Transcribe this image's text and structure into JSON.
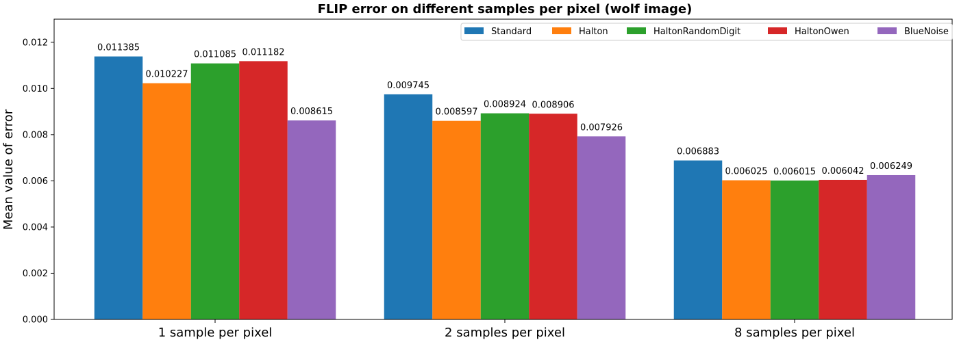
{
  "chart_data": {
    "type": "bar",
    "title": "FLIP error on different samples per pixel (wolf image)",
    "xlabel": "",
    "ylabel": "Mean value of error",
    "categories": [
      "1 sample per pixel",
      "2 samples per pixel",
      "8 samples per pixel"
    ],
    "ylim": [
      0,
      0.013
    ],
    "yticks": [
      "0.000",
      "0.002",
      "0.004",
      "0.006",
      "0.008",
      "0.010",
      "0.012"
    ],
    "grid": false,
    "legend_position": "top-right",
    "series": [
      {
        "name": "Standard",
        "color": "#1f77b4",
        "values": [
          0.011385,
          0.009745,
          0.006883
        ],
        "labels": [
          "0.011385",
          "0.009745",
          "0.006883"
        ]
      },
      {
        "name": "Halton",
        "color": "#ff7f0e",
        "values": [
          0.010227,
          0.008597,
          0.006025
        ],
        "labels": [
          "0.010227",
          "0.008597",
          "0.006025"
        ]
      },
      {
        "name": "HaltonRandomDigit",
        "color": "#2ca02c",
        "values": [
          0.011085,
          0.008924,
          0.006015
        ],
        "labels": [
          "0.011085",
          "0.008924",
          "0.006015"
        ]
      },
      {
        "name": "HaltonOwen",
        "color": "#d62728",
        "values": [
          0.011182,
          0.008906,
          0.006042
        ],
        "labels": [
          "0.011182",
          "0.008906",
          "0.006042"
        ]
      },
      {
        "name": "BlueNoise",
        "color": "#9467bd",
        "values": [
          0.008615,
          0.007926,
          0.006249
        ],
        "labels": [
          "0.008615",
          "0.007926",
          "0.006249"
        ]
      }
    ]
  }
}
